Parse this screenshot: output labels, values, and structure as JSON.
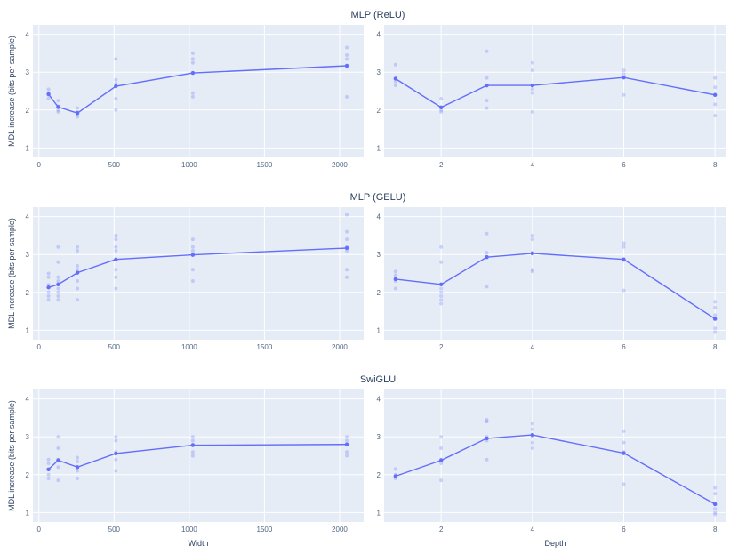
{
  "figure": {
    "colors": {
      "plot_bg": "#e5ecf6",
      "grid": "#ffffff",
      "line": "#636efa",
      "text": "#2a3f5f"
    }
  },
  "chart_data": [
    {
      "type": "line",
      "title": "MLP (ReLU)",
      "xlabel": "",
      "ylabel": "MDL increase (bits per sample)",
      "xlim": [
        -40,
        2160
      ],
      "ylim": [
        0.75,
        4.25
      ],
      "xticks": [
        0,
        500,
        1000,
        1500,
        2000
      ],
      "yticks": [
        1,
        2,
        3,
        4
      ],
      "x": [
        64,
        128,
        256,
        512,
        1024,
        2048
      ],
      "y": [
        2.42,
        2.08,
        1.92,
        2.63,
        2.98,
        3.17
      ],
      "points": [
        [
          64,
          2.55
        ],
        [
          64,
          2.45
        ],
        [
          64,
          2.4
        ],
        [
          64,
          2.3
        ],
        [
          128,
          2.25
        ],
        [
          128,
          2.1
        ],
        [
          128,
          2.0
        ],
        [
          128,
          1.95
        ],
        [
          256,
          2.05
        ],
        [
          256,
          1.95
        ],
        [
          256,
          1.88
        ],
        [
          256,
          1.82
        ],
        [
          512,
          3.35
        ],
        [
          512,
          2.8
        ],
        [
          512,
          2.7
        ],
        [
          512,
          2.3
        ],
        [
          512,
          2.0
        ],
        [
          1024,
          3.5
        ],
        [
          1024,
          3.35
        ],
        [
          1024,
          3.25
        ],
        [
          1024,
          2.45
        ],
        [
          1024,
          2.35
        ],
        [
          2048,
          3.65
        ],
        [
          2048,
          3.45
        ],
        [
          2048,
          3.35
        ],
        [
          2048,
          3.15
        ],
        [
          2048,
          2.35
        ]
      ]
    },
    {
      "type": "line",
      "title": "",
      "xlabel": "",
      "ylabel": "",
      "xlim": [
        0.75,
        8.25
      ],
      "ylim": [
        0.75,
        4.25
      ],
      "xticks": [
        2,
        4,
        6,
        8
      ],
      "yticks": [
        1,
        2,
        3,
        4
      ],
      "x": [
        1,
        2,
        3,
        4,
        6,
        8
      ],
      "y": [
        2.83,
        2.07,
        2.65,
        2.65,
        2.86,
        2.4
      ],
      "points": [
        [
          1,
          3.2
        ],
        [
          1,
          2.75
        ],
        [
          1,
          2.65
        ],
        [
          2,
          2.3
        ],
        [
          2,
          2.0
        ],
        [
          2,
          1.95
        ],
        [
          3,
          3.55
        ],
        [
          3,
          2.85
        ],
        [
          3,
          2.25
        ],
        [
          3,
          2.05
        ],
        [
          4,
          3.25
        ],
        [
          4,
          3.05
        ],
        [
          4,
          2.55
        ],
        [
          4,
          2.45
        ],
        [
          4,
          1.95
        ],
        [
          6,
          3.05
        ],
        [
          6,
          2.95
        ],
        [
          6,
          2.4
        ],
        [
          8,
          2.85
        ],
        [
          8,
          2.6
        ],
        [
          8,
          2.15
        ],
        [
          8,
          1.85
        ]
      ]
    },
    {
      "type": "line",
      "title": "MLP (GELU)",
      "xlabel": "",
      "ylabel": "MDL increase (bits per sample)",
      "xlim": [
        -40,
        2160
      ],
      "ylim": [
        0.75,
        4.25
      ],
      "xticks": [
        0,
        500,
        1000,
        1500,
        2000
      ],
      "yticks": [
        1,
        2,
        3,
        4
      ],
      "x": [
        64,
        128,
        256,
        512,
        1024,
        2048
      ],
      "y": [
        2.13,
        2.21,
        2.52,
        2.87,
        2.99,
        3.17
      ],
      "points": [
        [
          64,
          2.5
        ],
        [
          64,
          2.4
        ],
        [
          64,
          2.2
        ],
        [
          64,
          2.0
        ],
        [
          64,
          1.9
        ],
        [
          64,
          1.8
        ],
        [
          128,
          3.2
        ],
        [
          128,
          2.8
        ],
        [
          128,
          2.4
        ],
        [
          128,
          2.3
        ],
        [
          128,
          2.1
        ],
        [
          128,
          2.0
        ],
        [
          128,
          1.9
        ],
        [
          128,
          1.8
        ],
        [
          256,
          3.2
        ],
        [
          256,
          3.1
        ],
        [
          256,
          2.7
        ],
        [
          256,
          2.6
        ],
        [
          256,
          2.3
        ],
        [
          256,
          2.1
        ],
        [
          256,
          1.8
        ],
        [
          512,
          3.5
        ],
        [
          512,
          3.4
        ],
        [
          512,
          3.2
        ],
        [
          512,
          3.1
        ],
        [
          512,
          2.6
        ],
        [
          512,
          2.4
        ],
        [
          512,
          2.1
        ],
        [
          1024,
          3.4
        ],
        [
          1024,
          3.2
        ],
        [
          1024,
          3.1
        ],
        [
          1024,
          2.6
        ],
        [
          1024,
          2.3
        ],
        [
          2048,
          4.05
        ],
        [
          2048,
          3.6
        ],
        [
          2048,
          3.4
        ],
        [
          2048,
          3.2
        ],
        [
          2048,
          3.1
        ],
        [
          2048,
          2.6
        ],
        [
          2048,
          2.4
        ]
      ]
    },
    {
      "type": "line",
      "title": "",
      "xlabel": "",
      "ylabel": "",
      "xlim": [
        0.75,
        8.25
      ],
      "ylim": [
        0.75,
        4.25
      ],
      "xticks": [
        2,
        4,
        6,
        8
      ],
      "yticks": [
        1,
        2,
        3,
        4
      ],
      "x": [
        1,
        2,
        3,
        4,
        6,
        8
      ],
      "y": [
        2.35,
        2.21,
        2.93,
        3.03,
        2.87,
        1.3
      ],
      "points": [
        [
          1,
          2.55
        ],
        [
          1,
          2.45
        ],
        [
          1,
          2.3
        ],
        [
          1,
          2.1
        ],
        [
          2,
          3.2
        ],
        [
          2,
          2.8
        ],
        [
          2,
          2.1
        ],
        [
          2,
          2.0
        ],
        [
          2,
          1.9
        ],
        [
          2,
          1.8
        ],
        [
          2,
          1.7
        ],
        [
          3,
          3.55
        ],
        [
          3,
          3.05
        ],
        [
          3,
          2.95
        ],
        [
          3,
          2.15
        ],
        [
          4,
          3.5
        ],
        [
          4,
          3.4
        ],
        [
          4,
          3.05
        ],
        [
          4,
          2.6
        ],
        [
          4,
          2.55
        ],
        [
          6,
          3.3
        ],
        [
          6,
          3.2
        ],
        [
          6,
          2.85
        ],
        [
          6,
          2.05
        ],
        [
          8,
          1.75
        ],
        [
          8,
          1.6
        ],
        [
          8,
          1.4
        ],
        [
          8,
          1.05
        ],
        [
          8,
          0.95
        ]
      ]
    },
    {
      "type": "line",
      "title": "SwiGLU",
      "xlabel": "Width",
      "ylabel": "MDL increase (bits per sample)",
      "xlim": [
        -40,
        2160
      ],
      "ylim": [
        0.75,
        4.25
      ],
      "xticks": [
        0,
        500,
        1000,
        1500,
        2000
      ],
      "yticks": [
        1,
        2,
        3,
        4
      ],
      "x": [
        64,
        128,
        256,
        512,
        1024,
        2048
      ],
      "y": [
        2.14,
        2.38,
        2.2,
        2.56,
        2.78,
        2.8
      ],
      "points": [
        [
          64,
          2.4
        ],
        [
          64,
          2.3
        ],
        [
          64,
          2.0
        ],
        [
          64,
          1.9
        ],
        [
          128,
          3.0
        ],
        [
          128,
          2.7
        ],
        [
          128,
          2.4
        ],
        [
          128,
          2.2
        ],
        [
          128,
          1.85
        ],
        [
          256,
          2.45
        ],
        [
          256,
          2.35
        ],
        [
          256,
          2.1
        ],
        [
          256,
          1.9
        ],
        [
          512,
          3.0
        ],
        [
          512,
          2.9
        ],
        [
          512,
          2.6
        ],
        [
          512,
          2.4
        ],
        [
          512,
          2.1
        ],
        [
          1024,
          3.0
        ],
        [
          1024,
          2.9
        ],
        [
          1024,
          2.8
        ],
        [
          1024,
          2.6
        ],
        [
          1024,
          2.5
        ],
        [
          2048,
          3.0
        ],
        [
          2048,
          2.9
        ],
        [
          2048,
          2.8
        ],
        [
          2048,
          2.6
        ],
        [
          2048,
          2.5
        ]
      ]
    },
    {
      "type": "line",
      "title": "",
      "xlabel": "Depth",
      "ylabel": "",
      "xlim": [
        0.75,
        8.25
      ],
      "ylim": [
        0.75,
        4.25
      ],
      "xticks": [
        2,
        4,
        6,
        8
      ],
      "yticks": [
        1,
        2,
        3,
        4
      ],
      "x": [
        1,
        2,
        3,
        4,
        6,
        8
      ],
      "y": [
        1.96,
        2.38,
        2.96,
        3.05,
        2.57,
        1.22
      ],
      "points": [
        [
          1,
          2.15
        ],
        [
          1,
          2.0
        ],
        [
          1,
          1.9
        ],
        [
          2,
          3.0
        ],
        [
          2,
          2.7
        ],
        [
          2,
          2.4
        ],
        [
          2,
          2.3
        ],
        [
          2,
          1.85
        ],
        [
          3,
          3.45
        ],
        [
          3,
          3.4
        ],
        [
          3,
          3.0
        ],
        [
          3,
          2.9
        ],
        [
          3,
          2.4
        ],
        [
          4,
          3.35
        ],
        [
          4,
          3.2
        ],
        [
          4,
          3.0
        ],
        [
          4,
          2.85
        ],
        [
          4,
          2.7
        ],
        [
          6,
          3.15
        ],
        [
          6,
          2.85
        ],
        [
          6,
          2.6
        ],
        [
          6,
          1.75
        ],
        [
          8,
          1.65
        ],
        [
          8,
          1.5
        ],
        [
          8,
          1.1
        ],
        [
          8,
          1.0
        ],
        [
          8,
          0.95
        ]
      ]
    }
  ]
}
